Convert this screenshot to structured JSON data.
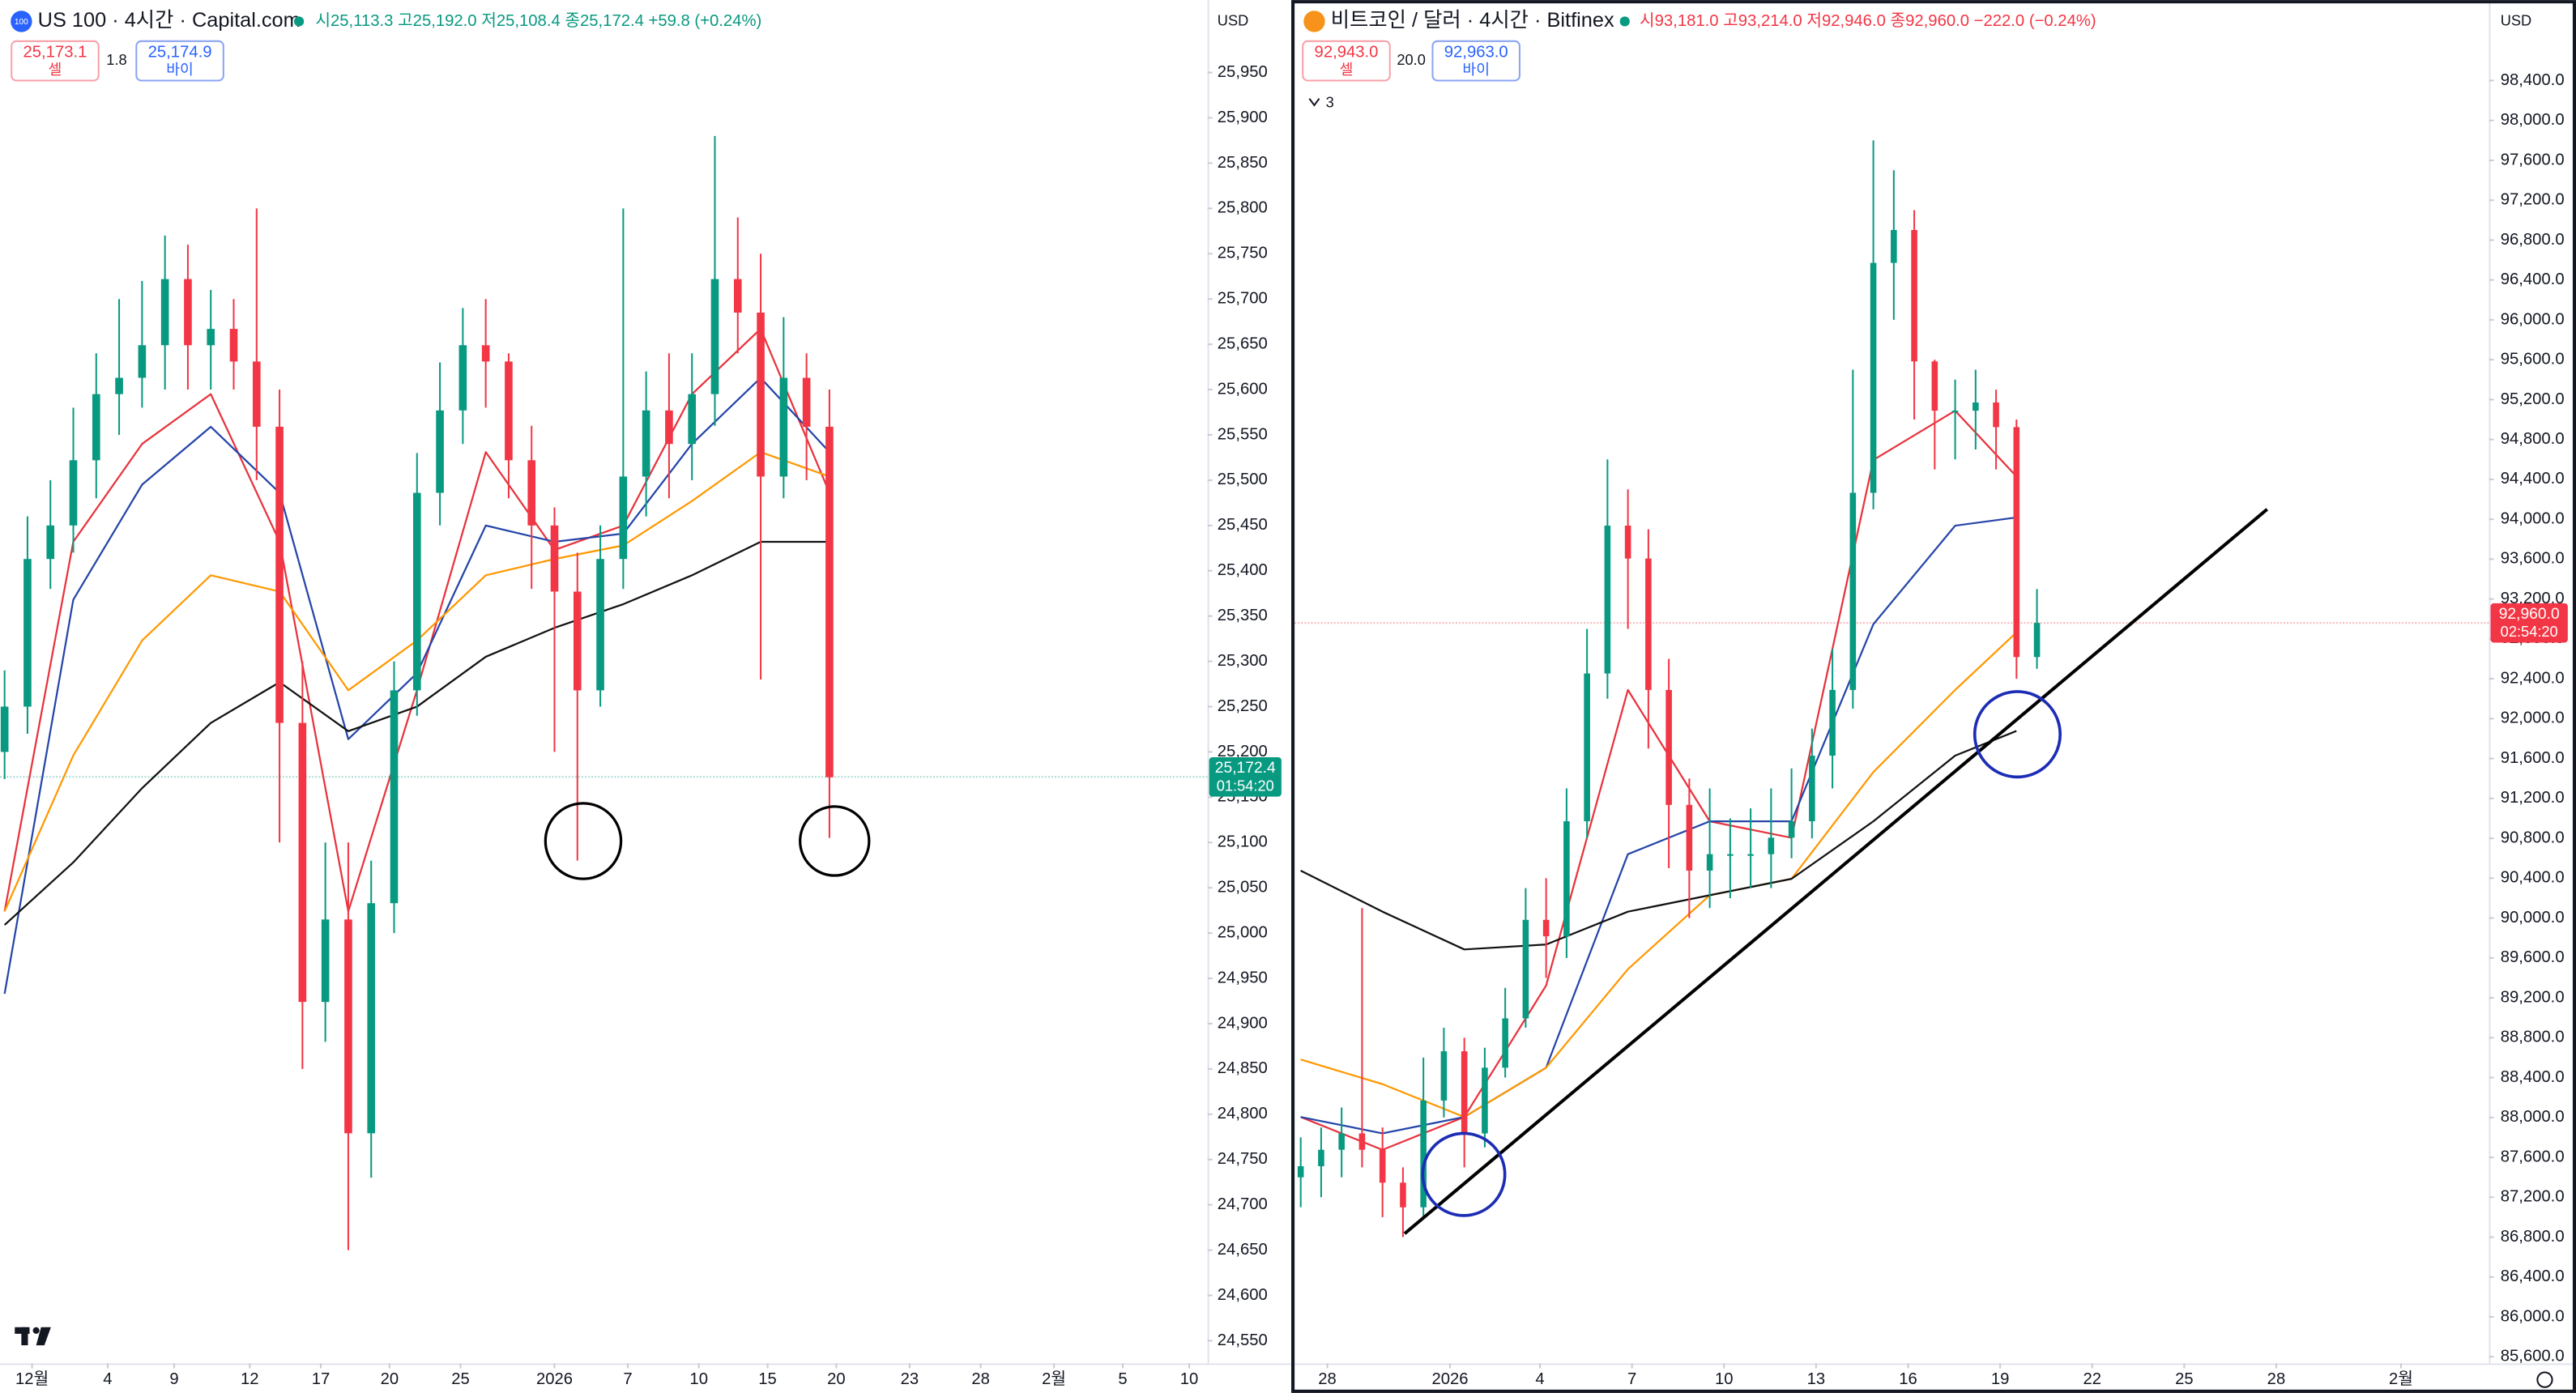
{
  "chart_data": [
    {
      "type": "candlestick",
      "symbol_icon": "100",
      "title": "US 100 · 4시간 · Capital.com",
      "ohlc_text": "시25,113.3 고25,192.0 저25,108.4 종25,172.4 +59.8 (+0.24%)",
      "sell_price": "25,173.1",
      "sell_label": "셀",
      "spread": "1.8",
      "buy_price": "25,174.9",
      "buy_label": "바이",
      "currency": "USD",
      "last_price": {
        "value": 25172.4,
        "label": "25,172.4"
      },
      "countdown": "01:54:20",
      "up_color": "#089981",
      "down_color": "#f23645",
      "last_color": "#089981",
      "xlim": [
        -0.2,
        52.5
      ],
      "ylim": [
        24525,
        26030
      ],
      "xticks": [
        {
          "value": 1.2,
          "label": "12월"
        },
        {
          "value": 4.5,
          "label": "4"
        },
        {
          "value": 7.4,
          "label": "9"
        },
        {
          "value": 10.7,
          "label": "12"
        },
        {
          "value": 13.8,
          "label": "17"
        },
        {
          "value": 16.8,
          "label": "20"
        },
        {
          "value": 19.9,
          "label": "25"
        },
        {
          "value": 24.0,
          "label": "2026"
        },
        {
          "value": 27.2,
          "label": "7"
        },
        {
          "value": 30.3,
          "label": "10"
        },
        {
          "value": 33.3,
          "label": "15"
        },
        {
          "value": 36.3,
          "label": "20"
        },
        {
          "value": 39.5,
          "label": "23"
        },
        {
          "value": 42.6,
          "label": "28"
        },
        {
          "value": 45.8,
          "label": "2월"
        },
        {
          "value": 48.8,
          "label": "5"
        },
        {
          "value": 51.7,
          "label": "10"
        }
      ],
      "yticks": [
        {
          "value": 24550,
          "label": "24,550"
        },
        {
          "value": 24600,
          "label": "24,600"
        },
        {
          "value": 24650,
          "label": "24,650"
        },
        {
          "value": 24700,
          "label": "24,700"
        },
        {
          "value": 24750,
          "label": "24,750"
        },
        {
          "value": 24800,
          "label": "24,800"
        },
        {
          "value": 24850,
          "label": "24,850"
        },
        {
          "value": 24900,
          "label": "24,900"
        },
        {
          "value": 24950,
          "label": "24,950"
        },
        {
          "value": 25000,
          "label": "25,000"
        },
        {
          "value": 25050,
          "label": "25,050"
        },
        {
          "value": 25100,
          "label": "25,100"
        },
        {
          "value": 25150,
          "label": "25,150"
        },
        {
          "value": 25200,
          "label": "25,200"
        },
        {
          "value": 25250,
          "label": "25,250"
        },
        {
          "value": 25300,
          "label": "25,300"
        },
        {
          "value": 25350,
          "label": "25,350"
        },
        {
          "value": 25400,
          "label": "25,400"
        },
        {
          "value": 25450,
          "label": "25,450"
        },
        {
          "value": 25500,
          "label": "25,500"
        },
        {
          "value": 25550,
          "label": "25,550"
        },
        {
          "value": 25600,
          "label": "25,600"
        },
        {
          "value": 25650,
          "label": "25,650"
        },
        {
          "value": 25700,
          "label": "25,700"
        },
        {
          "value": 25750,
          "label": "25,750"
        },
        {
          "value": 25800,
          "label": "25,800"
        },
        {
          "value": 25850,
          "label": "25,850"
        },
        {
          "value": 25900,
          "label": "25,900"
        },
        {
          "value": 25950,
          "label": "25,950"
        }
      ],
      "open": [
        25200,
        25250,
        25413,
        25450,
        25522,
        25595,
        25613,
        25649,
        25722,
        25649,
        25667,
        25631,
        25559,
        25232,
        24924,
        25015,
        24779,
        25033,
        25268,
        25486,
        25577,
        25649,
        25631,
        25522,
        25450,
        25377,
        25268,
        25413,
        25504,
        25577,
        25540,
        25595,
        25722,
        25685,
        25504,
        25613,
        25559
      ],
      "high": [
        25290,
        25460,
        25500,
        25580,
        25640,
        25700,
        25720,
        25770,
        25760,
        25710,
        25700,
        25800,
        25600,
        25300,
        25100,
        25100,
        25080,
        25300,
        25530,
        25630,
        25690,
        25700,
        25640,
        25560,
        25470,
        25420,
        25450,
        25800,
        25620,
        25640,
        25640,
        25880,
        25790,
        25750,
        25680,
        25640,
        25600
      ],
      "low": [
        25170,
        25220,
        25380,
        25420,
        25480,
        25550,
        25580,
        25600,
        25600,
        25600,
        25600,
        25500,
        25100,
        24850,
        24880,
        24650,
        24730,
        25000,
        25240,
        25450,
        25540,
        25580,
        25480,
        25380,
        25200,
        25080,
        25250,
        25380,
        25460,
        25480,
        25500,
        25560,
        25640,
        25280,
        25480,
        25500,
        25105
      ],
      "close": [
        25250,
        25413,
        25450,
        25522,
        25595,
        25613,
        25649,
        25722,
        25649,
        25667,
        25631,
        25559,
        25232,
        24924,
        25015,
        24779,
        25033,
        25268,
        25486,
        25577,
        25649,
        25631,
        25522,
        25450,
        25377,
        25268,
        25413,
        25504,
        25577,
        25540,
        25595,
        25722,
        25685,
        25504,
        25613,
        25559,
        25172
      ],
      "lines": [
        {
          "color": "#e8323c",
          "x": [
            0,
            3,
            6,
            9,
            12,
            15,
            18,
            21,
            24,
            27,
            30,
            33,
            36
          ],
          "values": [
            25024,
            25432,
            25540,
            25595,
            25432,
            25024,
            25268,
            25531,
            25423,
            25450,
            25595,
            25667,
            25486
          ]
        },
        {
          "color": "#2445a8",
          "x": [
            0,
            3,
            6,
            9,
            12,
            15,
            18,
            21,
            24,
            27,
            30,
            33,
            36
          ],
          "values": [
            24933,
            25368,
            25495,
            25559,
            25486,
            25214,
            25287,
            25450,
            25432,
            25441,
            25540,
            25613,
            25531
          ]
        },
        {
          "color": "#ff9800",
          "x": [
            0,
            3,
            6,
            9,
            12,
            15,
            18,
            21,
            24,
            27,
            30,
            33,
            36
          ],
          "values": [
            25024,
            25196,
            25323,
            25395,
            25377,
            25268,
            25323,
            25395,
            25413,
            25428,
            25477,
            25531,
            25504
          ]
        },
        {
          "color": "#111111",
          "x": [
            0,
            3,
            6,
            9,
            12,
            15,
            18,
            21,
            24,
            27,
            30,
            33,
            36
          ],
          "values": [
            25009,
            25078,
            25160,
            25232,
            25277,
            25223,
            25250,
            25305,
            25337,
            25363,
            25395,
            25432,
            25432
          ]
        }
      ]
    },
    {
      "type": "candlestick",
      "title": "비트코인 / 달러 · 4시간 · Bitfinex",
      "ohlc_text": "시93,181.0 고93,214.0 저92,946.0 종92,960.0 −222.0 (−0.24%)",
      "sell_price": "92,943.0",
      "sell_label": "셀",
      "spread": "20.0",
      "buy_price": "92,963.0",
      "buy_label": "바이",
      "collapse_count": "3",
      "currency": "USD",
      "last_price": {
        "value": 92960,
        "label": "92,960.0"
      },
      "countdown": "02:54:20",
      "up_color": "#089981",
      "down_color": "#f23645",
      "last_color": "#f23645",
      "xlim": [
        -0.3,
        58.1
      ],
      "ylim": [
        85534,
        99207
      ],
      "xticks": [
        {
          "value": 1.3,
          "label": "28"
        },
        {
          "value": 7.3,
          "label": "2026"
        },
        {
          "value": 11.7,
          "label": "4"
        },
        {
          "value": 16.2,
          "label": "7"
        },
        {
          "value": 20.7,
          "label": "10"
        },
        {
          "value": 25.2,
          "label": "13"
        },
        {
          "value": 29.7,
          "label": "16"
        },
        {
          "value": 34.2,
          "label": "19"
        },
        {
          "value": 38.7,
          "label": "22"
        },
        {
          "value": 43.2,
          "label": "25"
        },
        {
          "value": 47.7,
          "label": "28"
        },
        {
          "value": 53.8,
          "label": "2월"
        }
      ],
      "yticks": [
        {
          "value": 85600,
          "label": "85,600.0"
        },
        {
          "value": 86000,
          "label": "86,000.0"
        },
        {
          "value": 86400,
          "label": "86,400.0"
        },
        {
          "value": 86800,
          "label": "86,800.0"
        },
        {
          "value": 87200,
          "label": "87,200.0"
        },
        {
          "value": 87600,
          "label": "87,600.0"
        },
        {
          "value": 88000,
          "label": "88,000.0"
        },
        {
          "value": 88400,
          "label": "88,400.0"
        },
        {
          "value": 88800,
          "label": "88,800.0"
        },
        {
          "value": 89200,
          "label": "89,200.0"
        },
        {
          "value": 89600,
          "label": "89,600.0"
        },
        {
          "value": 90000,
          "label": "90,000.0"
        },
        {
          "value": 90400,
          "label": "90,400.0"
        },
        {
          "value": 90800,
          "label": "90,800.0"
        },
        {
          "value": 91200,
          "label": "91,200.0"
        },
        {
          "value": 91600,
          "label": "91,600.0"
        },
        {
          "value": 92000,
          "label": "92,000.0"
        },
        {
          "value": 92400,
          "label": "92,400.0"
        },
        {
          "value": 92800,
          "label": "92,800.0"
        },
        {
          "value": 93200,
          "label": "93,200.0"
        },
        {
          "value": 93600,
          "label": "93,600.0"
        },
        {
          "value": 94000,
          "label": "94,000.0"
        },
        {
          "value": 94400,
          "label": "94,400.0"
        },
        {
          "value": 94800,
          "label": "94,800.0"
        },
        {
          "value": 95200,
          "label": "95,200.0"
        },
        {
          "value": 95600,
          "label": "95,600.0"
        },
        {
          "value": 96000,
          "label": "96,000.0"
        },
        {
          "value": 96400,
          "label": "96,400.0"
        },
        {
          "value": 96800,
          "label": "96,800.0"
        },
        {
          "value": 97200,
          "label": "97,200.0"
        },
        {
          "value": 97600,
          "label": "97,600.0"
        },
        {
          "value": 98000,
          "label": "98,000.0"
        },
        {
          "value": 98400,
          "label": "98,400.0"
        }
      ],
      "open": [
        87400,
        87511,
        87676,
        87840,
        87676,
        87346,
        87099,
        88170,
        88664,
        87840,
        88499,
        88994,
        89982,
        89817,
        90971,
        92453,
        93936,
        93606,
        92288,
        91135,
        90476,
        90641,
        90641,
        90641,
        90806,
        90971,
        91629,
        92288,
        94265,
        96571,
        96901,
        95583,
        95089,
        95089,
        95171,
        94924,
        92618
      ],
      "high": [
        87800,
        87900,
        88100,
        90100,
        87900,
        87500,
        88600,
        88900,
        88800,
        88700,
        89300,
        90300,
        90400,
        91300,
        92900,
        94600,
        94300,
        93900,
        92600,
        91400,
        91300,
        91000,
        91100,
        91300,
        91500,
        91900,
        92700,
        95500,
        97800,
        97500,
        97100,
        95600,
        95400,
        95500,
        95300,
        95000,
        93300
      ],
      "low": [
        87100,
        87200,
        87400,
        87500,
        87000,
        86800,
        87000,
        88000,
        87500,
        87700,
        88400,
        88900,
        89400,
        89600,
        90800,
        92200,
        92900,
        91700,
        90500,
        90000,
        90100,
        90200,
        90300,
        90300,
        90600,
        90800,
        91300,
        92100,
        94100,
        96000,
        95000,
        94500,
        94600,
        94700,
        94500,
        92400,
        92500
      ],
      "close": [
        87511,
        87676,
        87840,
        87676,
        87346,
        87099,
        88170,
        88664,
        87840,
        88499,
        88994,
        89982,
        89817,
        90971,
        92453,
        93936,
        93606,
        92288,
        91135,
        90476,
        90641,
        90641,
        90641,
        90806,
        90971,
        91629,
        92288,
        94265,
        96571,
        96901,
        95583,
        95089,
        95089,
        95171,
        94924,
        92618,
        92960
      ],
      "lines": [
        {
          "color": "#e8323c",
          "x": [
            0,
            4,
            8,
            12,
            16,
            20,
            24,
            28,
            32,
            35
          ],
          "values": [
            88005,
            87676,
            88005,
            89323,
            92288,
            90971,
            90806,
            94595,
            95089,
            94430
          ]
        },
        {
          "color": "#2445a8",
          "x": [
            0,
            4,
            8,
            12,
            16,
            20,
            24,
            28,
            32,
            35
          ],
          "values": [
            88005,
            87840,
            88005,
            88500,
            90641,
            90971,
            90971,
            92947,
            93936,
            94018
          ]
        },
        {
          "color": "#ff9800",
          "x": [
            0,
            4,
            8,
            12,
            16,
            20,
            24,
            28,
            32,
            35
          ],
          "values": [
            88582,
            88335,
            88005,
            88500,
            89488,
            90229,
            90394,
            91465,
            92288,
            92865
          ]
        },
        {
          "color": "#111111",
          "x": [
            0,
            4,
            8,
            12,
            16,
            20,
            24,
            28,
            32,
            35
          ],
          "values": [
            90476,
            90064,
            89686,
            89735,
            90064,
            90229,
            90394,
            90971,
            91629,
            91876
          ]
        }
      ]
    }
  ]
}
